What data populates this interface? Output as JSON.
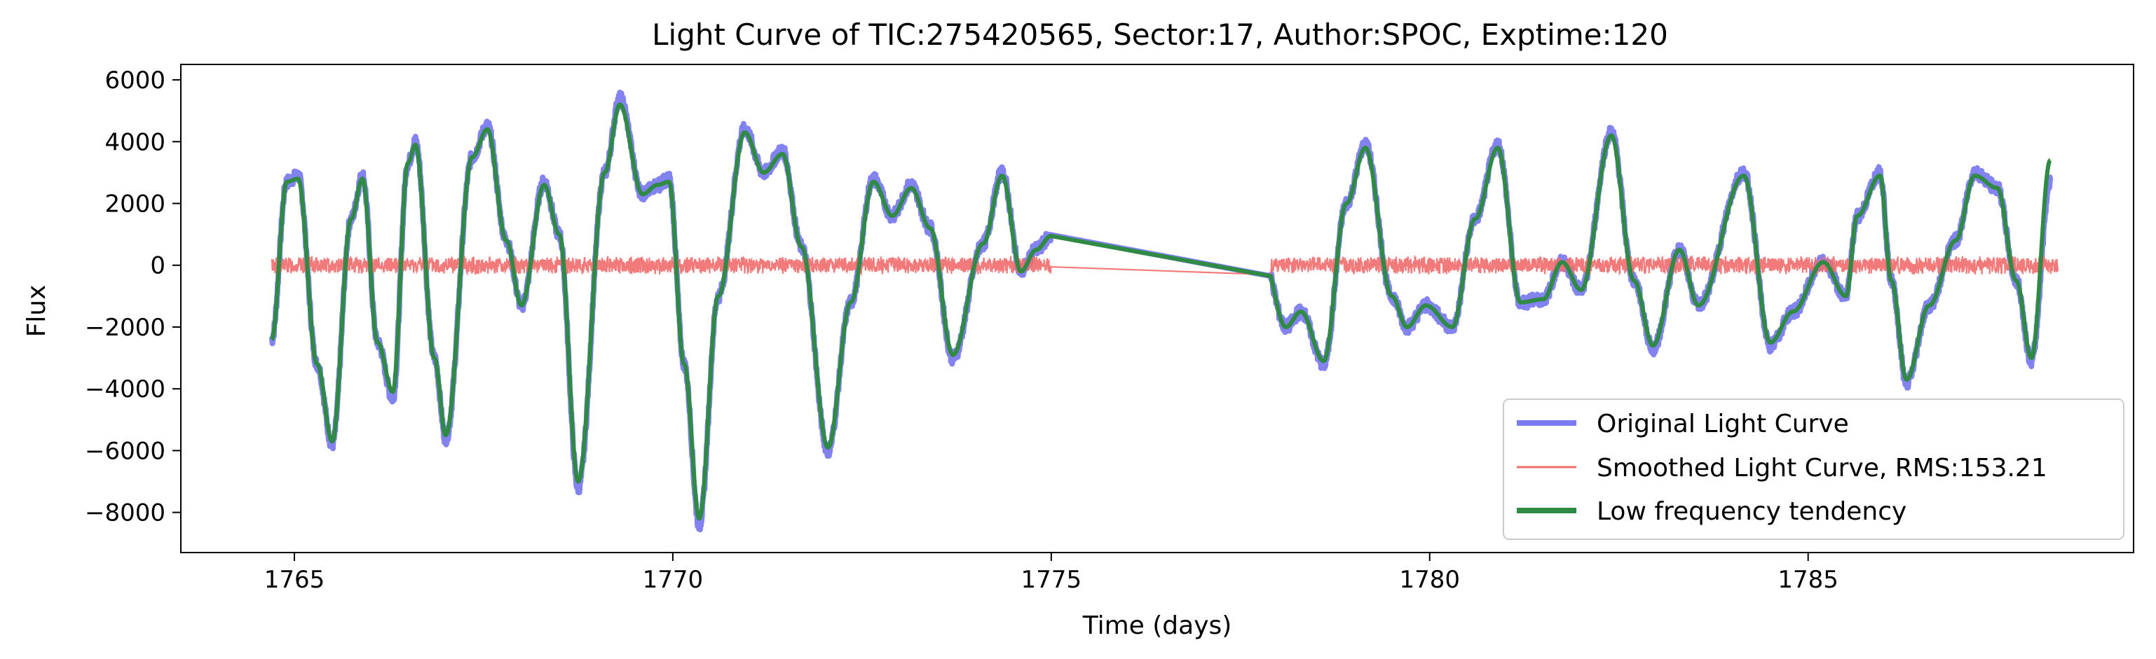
{
  "chart_data": {
    "type": "line",
    "title": "Light Curve of TIC:275420565, Sector:17, Author:SPOC, Exptime:120",
    "xlabel": "Time (days)",
    "ylabel": "Flux",
    "xlim": [
      1763.5,
      1789.3
    ],
    "ylim": [
      -9300,
      6500
    ],
    "xticks": [
      1765,
      1770,
      1775,
      1780,
      1785
    ],
    "yticks": [
      -8000,
      -6000,
      -4000,
      -2000,
      0,
      2000,
      4000,
      6000
    ],
    "grid": false,
    "legend_position": "lower-right",
    "gap": [
      1775.0,
      1777.9
    ],
    "series": [
      {
        "name": "Original Light Curve",
        "color": "#7b7bf0",
        "points": [
          [
            1764.7,
            -2400
          ],
          [
            1764.9,
            2700
          ],
          [
            1765.05,
            2900
          ],
          [
            1765.3,
            -3200
          ],
          [
            1765.5,
            -5800
          ],
          [
            1765.75,
            1500
          ],
          [
            1765.9,
            2900
          ],
          [
            1766.1,
            -2500
          ],
          [
            1766.3,
            -4300
          ],
          [
            1766.5,
            3300
          ],
          [
            1766.6,
            4000
          ],
          [
            1766.85,
            -3000
          ],
          [
            1767.0,
            -5600
          ],
          [
            1767.35,
            3500
          ],
          [
            1767.55,
            4500
          ],
          [
            1767.8,
            800
          ],
          [
            1768.0,
            -1300
          ],
          [
            1768.3,
            2700
          ],
          [
            1768.5,
            1000
          ],
          [
            1768.75,
            -7200
          ],
          [
            1769.1,
            3000
          ],
          [
            1769.3,
            5400
          ],
          [
            1769.6,
            2300
          ],
          [
            1769.8,
            2600
          ],
          [
            1769.95,
            2800
          ],
          [
            1770.15,
            -3200
          ],
          [
            1770.35,
            -8400
          ],
          [
            1770.6,
            -1000
          ],
          [
            1770.95,
            4400
          ],
          [
            1771.2,
            3000
          ],
          [
            1771.45,
            3700
          ],
          [
            1771.7,
            600
          ],
          [
            1772.05,
            -6000
          ],
          [
            1772.35,
            -1200
          ],
          [
            1772.65,
            2800
          ],
          [
            1772.9,
            1600
          ],
          [
            1773.15,
            2600
          ],
          [
            1773.4,
            1200
          ],
          [
            1773.7,
            -3000
          ],
          [
            1774.1,
            700
          ],
          [
            1774.35,
            3000
          ],
          [
            1774.6,
            -200
          ],
          [
            1774.8,
            500
          ],
          [
            1775.0,
            950
          ],
          [
            1777.8,
            200
          ],
          [
            1778.1,
            -2000
          ],
          [
            1778.3,
            -1500
          ],
          [
            1778.6,
            -3200
          ],
          [
            1778.9,
            2000
          ],
          [
            1779.15,
            3900
          ],
          [
            1779.5,
            -1000
          ],
          [
            1779.7,
            -2000
          ],
          [
            1779.95,
            -1300
          ],
          [
            1780.3,
            -2000
          ],
          [
            1780.6,
            1500
          ],
          [
            1780.9,
            3900
          ],
          [
            1781.2,
            -1200
          ],
          [
            1781.5,
            -1100
          ],
          [
            1781.75,
            100
          ],
          [
            1782.0,
            -800
          ],
          [
            1782.4,
            4300
          ],
          [
            1782.7,
            -500
          ],
          [
            1782.95,
            -2700
          ],
          [
            1783.3,
            500
          ],
          [
            1783.55,
            -1300
          ],
          [
            1784.15,
            3000
          ],
          [
            1784.5,
            -2600
          ],
          [
            1784.8,
            -1500
          ],
          [
            1785.2,
            100
          ],
          [
            1785.5,
            -1000
          ],
          [
            1785.65,
            1600
          ],
          [
            1785.95,
            3000
          ],
          [
            1786.1,
            -500
          ],
          [
            1786.3,
            -3800
          ],
          [
            1786.6,
            -1300
          ],
          [
            1786.95,
            800
          ],
          [
            1787.2,
            3000
          ],
          [
            1787.5,
            2500
          ],
          [
            1787.75,
            -500
          ],
          [
            1787.95,
            -3100
          ],
          [
            1788.2,
            2700
          ]
        ]
      },
      {
        "name": "Smoothed Light Curve, RMS:153.21",
        "color": "#f26b6b",
        "rms": 153.21
      },
      {
        "name": "Low frequency tendency",
        "color": "#2f8a44",
        "points": [
          [
            1764.7,
            -2400
          ],
          [
            1764.9,
            2700
          ],
          [
            1765.05,
            2800
          ],
          [
            1765.3,
            -3200
          ],
          [
            1765.5,
            -5700
          ],
          [
            1765.75,
            1500
          ],
          [
            1765.9,
            2800
          ],
          [
            1766.1,
            -2500
          ],
          [
            1766.3,
            -4100
          ],
          [
            1766.5,
            3300
          ],
          [
            1766.6,
            3900
          ],
          [
            1766.85,
            -3000
          ],
          [
            1767.0,
            -5500
          ],
          [
            1767.35,
            3500
          ],
          [
            1767.55,
            4400
          ],
          [
            1767.8,
            800
          ],
          [
            1768.0,
            -1300
          ],
          [
            1768.3,
            2600
          ],
          [
            1768.5,
            1000
          ],
          [
            1768.75,
            -7000
          ],
          [
            1769.1,
            3000
          ],
          [
            1769.3,
            5200
          ],
          [
            1769.6,
            2300
          ],
          [
            1769.8,
            2600
          ],
          [
            1769.95,
            2700
          ],
          [
            1770.15,
            -3200
          ],
          [
            1770.35,
            -8200
          ],
          [
            1770.6,
            -1000
          ],
          [
            1770.95,
            4300
          ],
          [
            1771.2,
            3000
          ],
          [
            1771.45,
            3600
          ],
          [
            1771.7,
            600
          ],
          [
            1772.05,
            -5900
          ],
          [
            1772.35,
            -1200
          ],
          [
            1772.65,
            2700
          ],
          [
            1772.9,
            1600
          ],
          [
            1773.15,
            2500
          ],
          [
            1773.4,
            1200
          ],
          [
            1773.7,
            -2900
          ],
          [
            1774.1,
            700
          ],
          [
            1774.35,
            2900
          ],
          [
            1774.6,
            -200
          ],
          [
            1774.8,
            500
          ],
          [
            1775.0,
            950
          ],
          [
            1777.8,
            200
          ],
          [
            1778.1,
            -2000
          ],
          [
            1778.3,
            -1500
          ],
          [
            1778.6,
            -3100
          ],
          [
            1778.9,
            2000
          ],
          [
            1779.15,
            3800
          ],
          [
            1779.5,
            -1000
          ],
          [
            1779.7,
            -2000
          ],
          [
            1779.95,
            -1300
          ],
          [
            1780.3,
            -2000
          ],
          [
            1780.6,
            1500
          ],
          [
            1780.9,
            3800
          ],
          [
            1781.2,
            -1200
          ],
          [
            1781.5,
            -1100
          ],
          [
            1781.75,
            100
          ],
          [
            1782.0,
            -800
          ],
          [
            1782.4,
            4200
          ],
          [
            1782.7,
            -500
          ],
          [
            1782.95,
            -2600
          ],
          [
            1783.3,
            500
          ],
          [
            1783.55,
            -1300
          ],
          [
            1784.15,
            2900
          ],
          [
            1784.5,
            -2500
          ],
          [
            1784.8,
            -1500
          ],
          [
            1785.2,
            100
          ],
          [
            1785.5,
            -1000
          ],
          [
            1785.65,
            1600
          ],
          [
            1785.95,
            2900
          ],
          [
            1786.1,
            -500
          ],
          [
            1786.3,
            -3700
          ],
          [
            1786.6,
            -1300
          ],
          [
            1786.95,
            800
          ],
          [
            1787.2,
            2900
          ],
          [
            1787.5,
            2500
          ],
          [
            1787.75,
            -500
          ],
          [
            1787.95,
            -3000
          ],
          [
            1788.2,
            3400
          ]
        ]
      }
    ]
  }
}
